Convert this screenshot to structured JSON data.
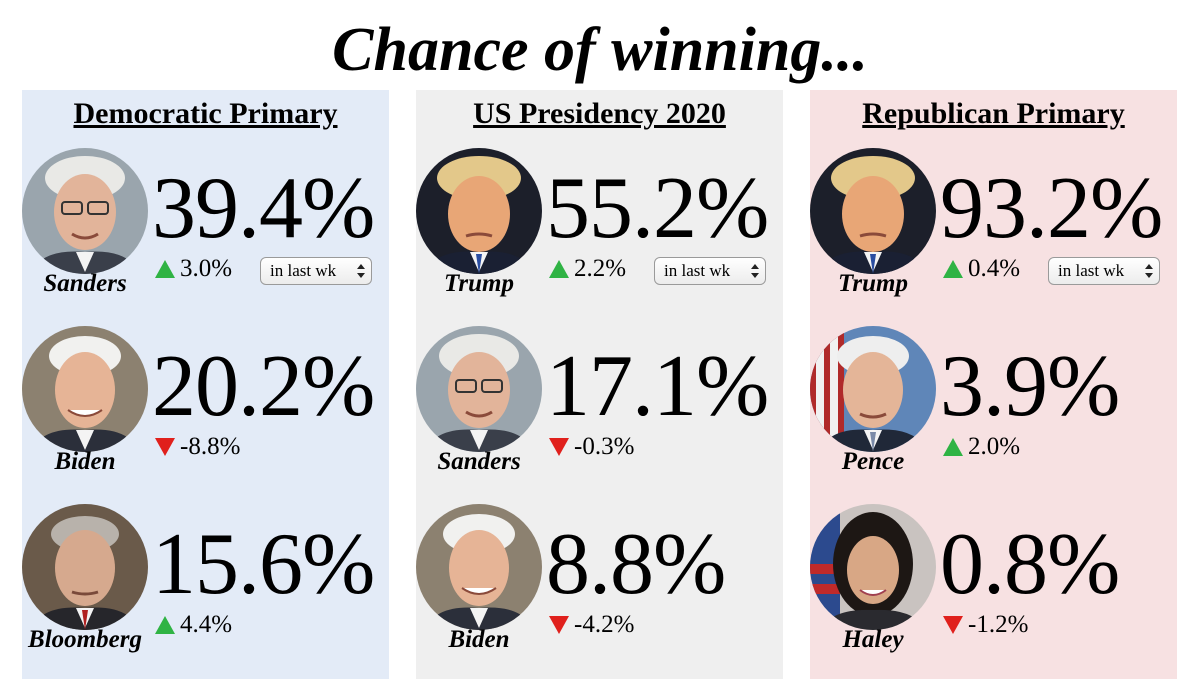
{
  "title": "Chance of winning...",
  "colors": {
    "dem_bg": "#e3ebf7",
    "pres_bg": "#efefef",
    "rep_bg": "#f7e1e2",
    "up_arrow": "#2fb344",
    "down_arrow": "#e0201c"
  },
  "panels": {
    "dem": {
      "title": "Democratic Primary",
      "period_select": "in last wk",
      "candidates": [
        {
          "name": "Sanders",
          "percent": "39.4%",
          "change": "3.0%",
          "direction": "up"
        },
        {
          "name": "Biden",
          "percent": "20.2%",
          "change": "-8.8%",
          "direction": "down"
        },
        {
          "name": "Bloomberg",
          "percent": "15.6%",
          "change": "4.4%",
          "direction": "up"
        }
      ]
    },
    "pres": {
      "title": "US Presidency 2020",
      "period_select": "in last wk",
      "candidates": [
        {
          "name": "Trump",
          "percent": "55.2%",
          "change": "2.2%",
          "direction": "up"
        },
        {
          "name": "Sanders",
          "percent": "17.1%",
          "change": "-0.3%",
          "direction": "down"
        },
        {
          "name": "Biden",
          "percent": "8.8%",
          "change": "-4.2%",
          "direction": "down"
        }
      ]
    },
    "rep": {
      "title": "Republican Primary",
      "period_select": "in last wk",
      "candidates": [
        {
          "name": "Trump",
          "percent": "93.2%",
          "change": "0.4%",
          "direction": "up"
        },
        {
          "name": "Pence",
          "percent": "3.9%",
          "change": "2.0%",
          "direction": "up"
        },
        {
          "name": "Haley",
          "percent": "0.8%",
          "change": "-1.2%",
          "direction": "down"
        }
      ]
    }
  }
}
